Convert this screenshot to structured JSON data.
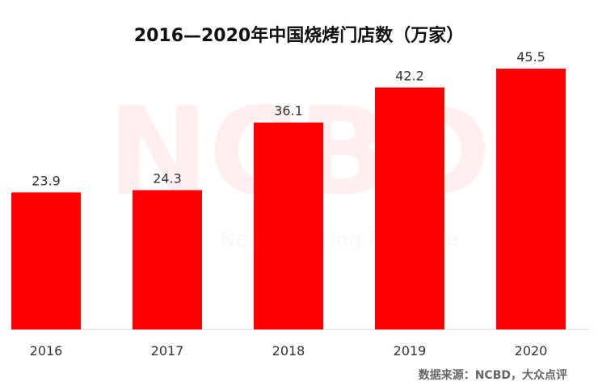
{
  "chart_data": {
    "type": "bar",
    "title": "2016—2020年中国烧烤门店数（万家）",
    "categories": [
      "2016",
      "2017",
      "2018",
      "2019",
      "2020"
    ],
    "values": [
      23.9,
      24.3,
      36.1,
      42.2,
      45.5
    ],
    "xlabel": "",
    "ylabel": "",
    "ylim": [
      0,
      50
    ],
    "grid": false,
    "legend": "none",
    "bar_color": "#ff0000",
    "label_color": "#333333"
  },
  "source": "数据来源：NCBD，大众点评",
  "watermark": {
    "logo": "NCBD",
    "subtitle": "New Catering Big Data"
  }
}
